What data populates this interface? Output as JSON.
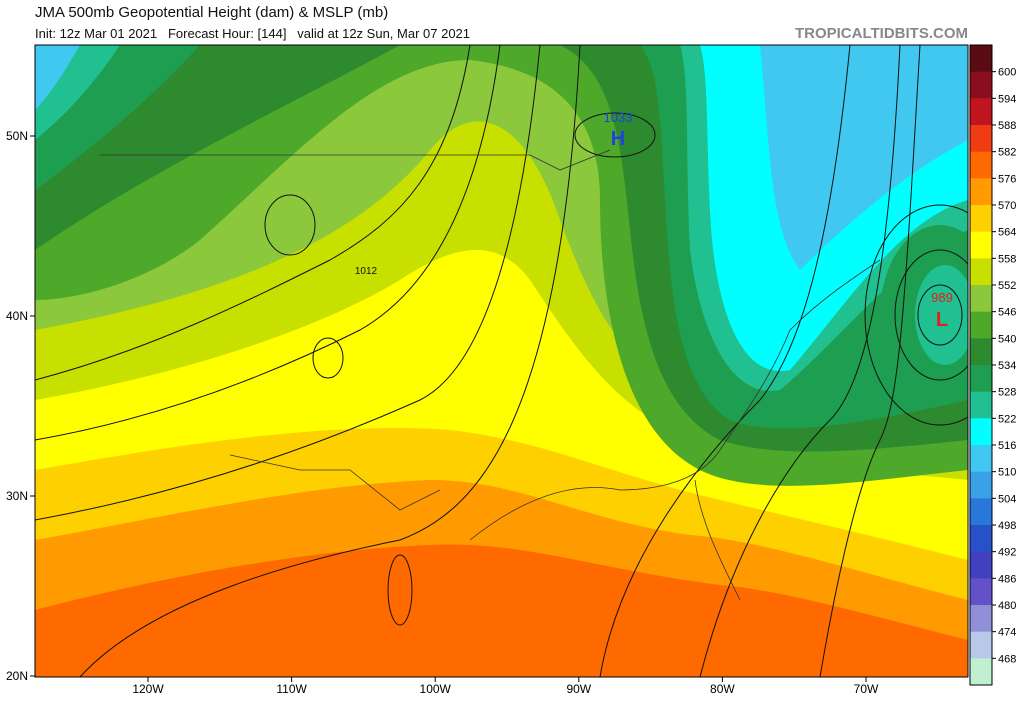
{
  "header": {
    "title": "JMA 500mb Geopotential Height (dam) & MSLP (mb)",
    "subtitle": "Init: 12z Mar 01 2021   Forecast Hour: [144]   valid at 12z Sun, Mar 07 2021",
    "watermark": "TROPICALTIDBITS.COM"
  },
  "map": {
    "lat_labels": [
      "50N",
      "40N",
      "30N",
      "20N"
    ],
    "lon_labels": [
      "120W",
      "110W",
      "100W",
      "90W",
      "80W",
      "70W"
    ],
    "annotations": {
      "high_value": "1033",
      "high_letter": "H",
      "low_value": "989",
      "low_letter": "L",
      "contour_label": "1012"
    }
  },
  "colorbar": {
    "levels": [
      600,
      594,
      588,
      582,
      576,
      570,
      564,
      558,
      552,
      546,
      540,
      534,
      528,
      522,
      516,
      510,
      504,
      498,
      492,
      486,
      480,
      474,
      468
    ],
    "colors": [
      "#5a0c14",
      "#8b0e1e",
      "#c0141e",
      "#f03c14",
      "#ff6a00",
      "#ff9a00",
      "#ffd000",
      "#ffff00",
      "#c8e000",
      "#8cc83c",
      "#4ea82a",
      "#2e8a2e",
      "#1e9e50",
      "#20c090",
      "#00ffff",
      "#40c8f0",
      "#3aa0e8",
      "#2878dc",
      "#2850c8",
      "#4040c0",
      "#6450c8",
      "#9090d8",
      "#b8c8e8",
      "#c0f0d0"
    ]
  }
}
